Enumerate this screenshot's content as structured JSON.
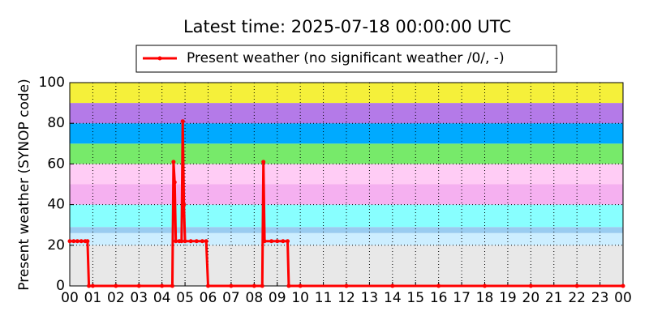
{
  "chart_data": {
    "type": "line",
    "title": "Latest time: 2025-07-18 00:00:00 UTC",
    "ylabel": "Present weather (SYNOP code)",
    "xlim": [
      0,
      24
    ],
    "ylim": [
      0,
      100
    ],
    "xticks": [
      {
        "value": 0,
        "label": "00"
      },
      {
        "value": 1,
        "label": "01"
      },
      {
        "value": 2,
        "label": "02"
      },
      {
        "value": 3,
        "label": "03"
      },
      {
        "value": 4,
        "label": "04"
      },
      {
        "value": 5,
        "label": "05"
      },
      {
        "value": 6,
        "label": "06"
      },
      {
        "value": 7,
        "label": "07"
      },
      {
        "value": 8,
        "label": "08"
      },
      {
        "value": 9,
        "label": "09"
      },
      {
        "value": 10,
        "label": "10"
      },
      {
        "value": 11,
        "label": "11"
      },
      {
        "value": 12,
        "label": "12"
      },
      {
        "value": 13,
        "label": "13"
      },
      {
        "value": 14,
        "label": "14"
      },
      {
        "value": 15,
        "label": "15"
      },
      {
        "value": 16,
        "label": "16"
      },
      {
        "value": 17,
        "label": "17"
      },
      {
        "value": 18,
        "label": "18"
      },
      {
        "value": 19,
        "label": "19"
      },
      {
        "value": 20,
        "label": "20"
      },
      {
        "value": 21,
        "label": "21"
      },
      {
        "value": 22,
        "label": "22"
      },
      {
        "value": 23,
        "label": "23"
      },
      {
        "value": 24,
        "label": "00"
      }
    ],
    "yticks": [
      0,
      20,
      40,
      60,
      80,
      100
    ],
    "grid": true,
    "bands": [
      {
        "from": 0,
        "to": 20,
        "color": "#e8e8e8"
      },
      {
        "from": 20,
        "to": 26,
        "color": "#cceeff"
      },
      {
        "from": 26,
        "to": 29,
        "color": "#99ccf0"
      },
      {
        "from": 29,
        "to": 40,
        "color": "#88ffff"
      },
      {
        "from": 40,
        "to": 50,
        "color": "#f5b0f0"
      },
      {
        "from": 50,
        "to": 60,
        "color": "#ffccf5"
      },
      {
        "from": 60,
        "to": 70,
        "color": "#77ea6a"
      },
      {
        "from": 70,
        "to": 80,
        "color": "#00aaff"
      },
      {
        "from": 80,
        "to": 90,
        "color": "#b47ae8"
      },
      {
        "from": 90,
        "to": 100,
        "color": "#f5f03a"
      }
    ],
    "series": [
      {
        "name": "Present weather (no significant weather /0/, -)",
        "color": "#ff0000",
        "x": [
          0,
          0.17,
          0.33,
          0.5,
          0.67,
          0.77,
          0.83,
          1,
          2,
          3,
          4,
          4.45,
          4.5,
          4.55,
          4.6,
          4.75,
          4.85,
          4.9,
          4.95,
          5.0,
          5.25,
          5.5,
          5.75,
          5.92,
          6.0,
          7,
          8,
          8.35,
          8.4,
          8.45,
          8.75,
          9,
          9.25,
          9.45,
          9.5,
          10,
          12,
          14,
          16,
          18,
          20,
          22,
          24
        ],
        "values": [
          22,
          22,
          22,
          22,
          22,
          22,
          0,
          0,
          0,
          0,
          0,
          0,
          61,
          51,
          22,
          22,
          22,
          81,
          40,
          22,
          22,
          22,
          22,
          22,
          0,
          0,
          0,
          0,
          61,
          22,
          22,
          22,
          22,
          22,
          0,
          0,
          0,
          0,
          0,
          0,
          0,
          0,
          0
        ]
      }
    ],
    "legend": "upper center"
  }
}
